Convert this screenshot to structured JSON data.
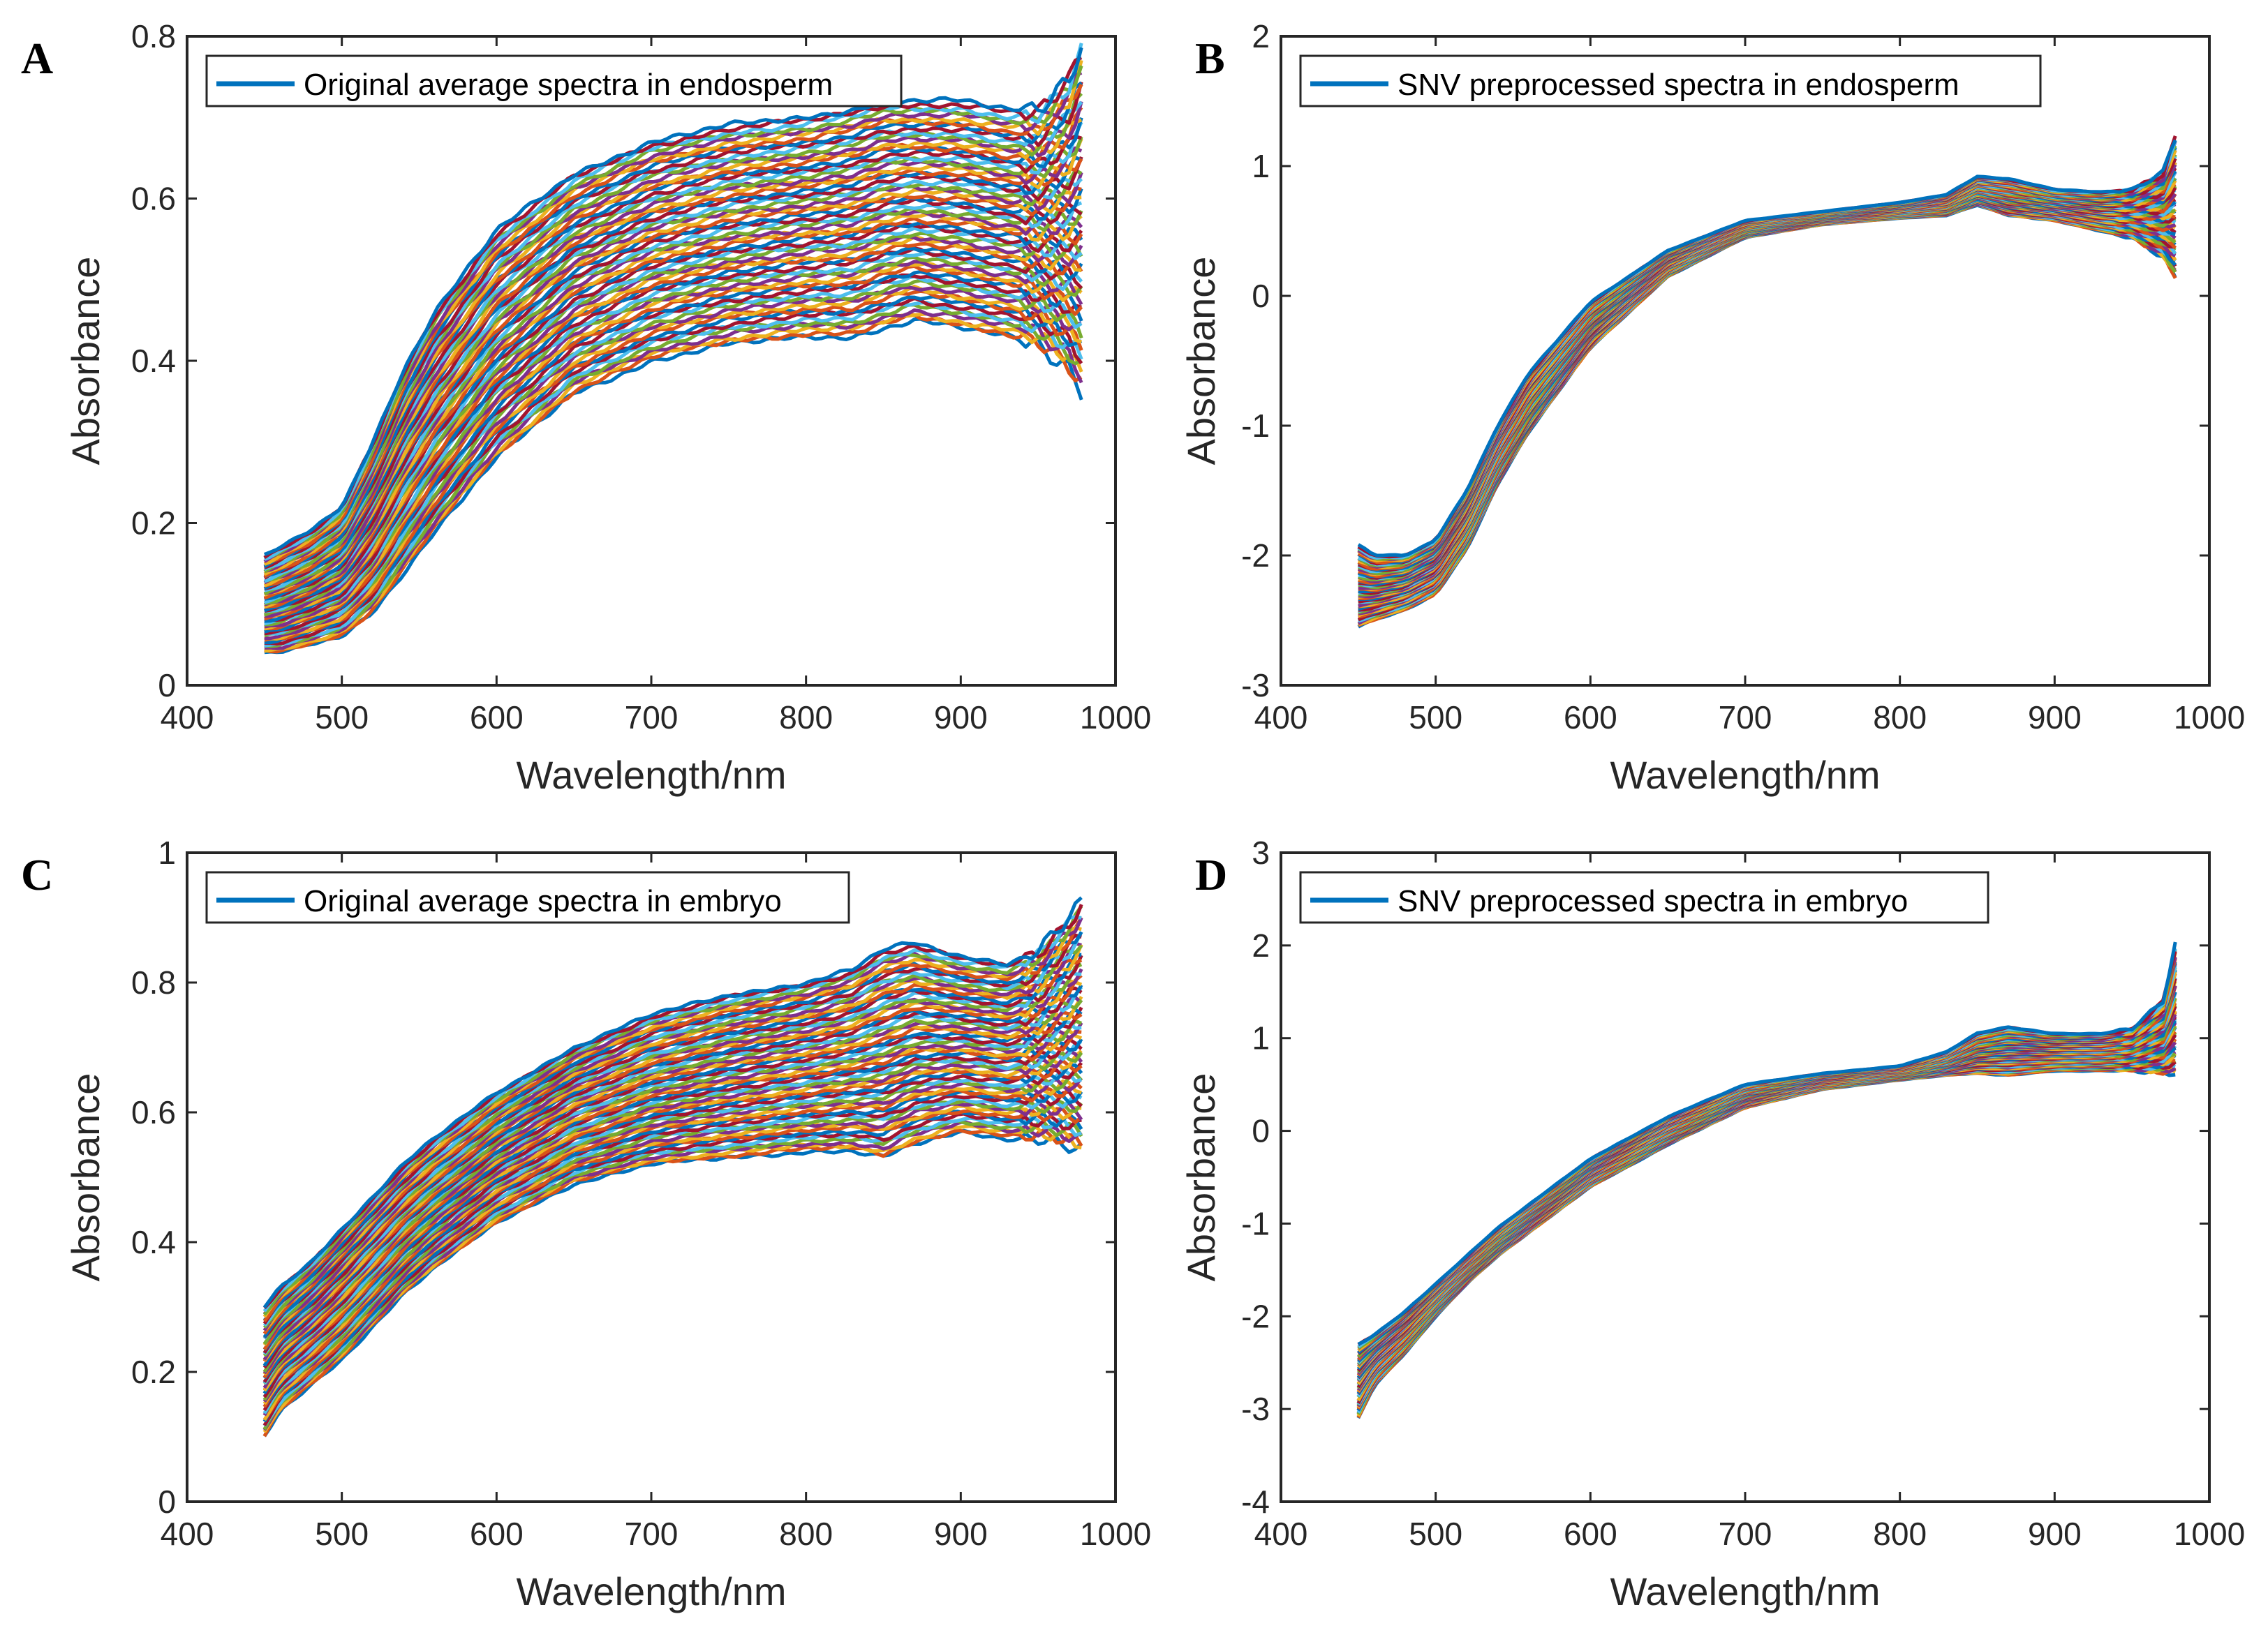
{
  "chart_data": [
    {
      "panel": "A",
      "type": "line",
      "xlabel": "Wavelength/nm",
      "ylabel": "Absorbance",
      "xlim": [
        400,
        1000
      ],
      "ylim": [
        0,
        0.8
      ],
      "xticks": [
        "400",
        "500",
        "600",
        "700",
        "800",
        "900",
        "1000"
      ],
      "yticks": [
        "0",
        "0.2",
        "0.4",
        "0.6",
        "0.8"
      ],
      "xticks_values": [
        400,
        500,
        600,
        700,
        800,
        900,
        1000
      ],
      "yticks_values": [
        0,
        0.2,
        0.4,
        0.6,
        0.8
      ],
      "legend": "Original average spectra in endosperm",
      "legend_color": "#0072bd",
      "legend_position": "top-left",
      "grid": false,
      "x": [
        450,
        460,
        480,
        500,
        520,
        540,
        560,
        600,
        650,
        700,
        750,
        800,
        830,
        850,
        870,
        900,
        930,
        950,
        970,
        980
      ],
      "envelope": {
        "upper": [
          0.16,
          0.17,
          0.19,
          0.22,
          0.3,
          0.39,
          0.46,
          0.56,
          0.63,
          0.67,
          0.69,
          0.7,
          0.71,
          0.72,
          0.72,
          0.72,
          0.71,
          0.71,
          0.75,
          0.8
        ],
        "lower": [
          0.04,
          0.04,
          0.05,
          0.06,
          0.09,
          0.14,
          0.19,
          0.28,
          0.36,
          0.4,
          0.42,
          0.43,
          0.43,
          0.44,
          0.45,
          0.44,
          0.43,
          0.42,
          0.39,
          0.36
        ]
      }
    },
    {
      "panel": "B",
      "type": "line",
      "xlabel": "Wavelength/nm",
      "ylabel": "Absorbance",
      "xlim": [
        400,
        1000
      ],
      "ylim": [
        -3,
        2
      ],
      "xticks": [
        "400",
        "500",
        "600",
        "700",
        "800",
        "900",
        "1000"
      ],
      "yticks": [
        "-3",
        "-2",
        "-1",
        "0",
        "1",
        "2"
      ],
      "xticks_values": [
        400,
        500,
        600,
        700,
        800,
        900,
        1000
      ],
      "yticks_values": [
        -3,
        -2,
        -1,
        0,
        1,
        2
      ],
      "legend": "SNV preprocessed spectra in endosperm",
      "legend_color": "#0072bd",
      "legend_position": "top-left",
      "grid": false,
      "x": [
        450,
        460,
        480,
        500,
        520,
        540,
        560,
        600,
        650,
        700,
        750,
        800,
        830,
        850,
        870,
        900,
        930,
        950,
        970,
        980
      ],
      "envelope": {
        "upper": [
          -1.92,
          -2.0,
          -2.0,
          -1.88,
          -1.5,
          -1.0,
          -0.6,
          -0.05,
          0.35,
          0.58,
          0.65,
          0.72,
          0.78,
          0.92,
          0.9,
          0.82,
          0.8,
          0.82,
          0.95,
          1.3
        ],
        "lower": [
          -2.55,
          -2.5,
          -2.42,
          -2.3,
          -1.95,
          -1.45,
          -1.05,
          -0.4,
          0.15,
          0.45,
          0.55,
          0.6,
          0.62,
          0.7,
          0.62,
          0.58,
          0.5,
          0.45,
          0.3,
          0.1
        ]
      }
    },
    {
      "panel": "C",
      "type": "line",
      "xlabel": "Wavelength/nm",
      "ylabel": "Absorbance",
      "xlim": [
        400,
        1000
      ],
      "ylim": [
        0,
        1
      ],
      "xticks": [
        "400",
        "500",
        "600",
        "700",
        "800",
        "900",
        "1000"
      ],
      "yticks": [
        "0",
        "0.2",
        "0.4",
        "0.6",
        "0.8",
        "1"
      ],
      "xticks_values": [
        400,
        500,
        600,
        700,
        800,
        900,
        1000
      ],
      "yticks_values": [
        0,
        0.2,
        0.4,
        0.6,
        0.8,
        1.0
      ],
      "legend": "Original average spectra in embryo",
      "legend_color": "#0072bd",
      "legend_position": "top-left",
      "grid": false,
      "x": [
        450,
        460,
        480,
        500,
        520,
        540,
        560,
        600,
        650,
        700,
        750,
        800,
        830,
        850,
        870,
        900,
        930,
        950,
        970,
        980
      ],
      "envelope": {
        "upper": [
          0.3,
          0.33,
          0.37,
          0.42,
          0.47,
          0.52,
          0.56,
          0.63,
          0.7,
          0.75,
          0.78,
          0.8,
          0.82,
          0.85,
          0.86,
          0.84,
          0.83,
          0.85,
          0.9,
          0.93
        ],
        "lower": [
          0.1,
          0.14,
          0.18,
          0.22,
          0.27,
          0.32,
          0.36,
          0.43,
          0.49,
          0.52,
          0.53,
          0.54,
          0.54,
          0.53,
          0.55,
          0.57,
          0.56,
          0.56,
          0.55,
          0.54
        ]
      }
    },
    {
      "panel": "D",
      "type": "line",
      "xlabel": "Wavelength/nm",
      "ylabel": "Absorbance",
      "xlim": [
        400,
        1000
      ],
      "ylim": [
        -4,
        3
      ],
      "xticks": [
        "400",
        "500",
        "600",
        "700",
        "800",
        "900",
        "1000"
      ],
      "yticks": [
        "-4",
        "-3",
        "-2",
        "-1",
        "0",
        "1",
        "2",
        "3"
      ],
      "xticks_values": [
        400,
        500,
        600,
        700,
        800,
        900,
        1000
      ],
      "yticks_values": [
        -4,
        -3,
        -2,
        -1,
        0,
        1,
        2,
        3
      ],
      "legend": "SNV preprocessed spectra in embryo",
      "legend_color": "#0072bd",
      "legend_position": "top-left",
      "grid": false,
      "x": [
        450,
        460,
        480,
        500,
        520,
        540,
        560,
        600,
        650,
        700,
        750,
        800,
        830,
        850,
        870,
        900,
        930,
        950,
        970,
        980
      ],
      "envelope": {
        "upper": [
          -2.3,
          -2.2,
          -1.95,
          -1.65,
          -1.35,
          -1.05,
          -0.8,
          -0.3,
          0.15,
          0.5,
          0.62,
          0.7,
          0.85,
          1.05,
          1.12,
          1.05,
          1.05,
          1.1,
          1.4,
          2.15
        ],
        "lower": [
          -3.1,
          -2.75,
          -2.4,
          -2.0,
          -1.65,
          -1.35,
          -1.1,
          -0.6,
          -0.15,
          0.25,
          0.45,
          0.55,
          0.6,
          0.62,
          0.6,
          0.65,
          0.65,
          0.65,
          0.62,
          0.62
        ]
      }
    }
  ],
  "series_colors": [
    "#0072bd",
    "#d95319",
    "#edb120",
    "#7e2f8e",
    "#77ac30",
    "#4dbeee",
    "#a2142f"
  ]
}
